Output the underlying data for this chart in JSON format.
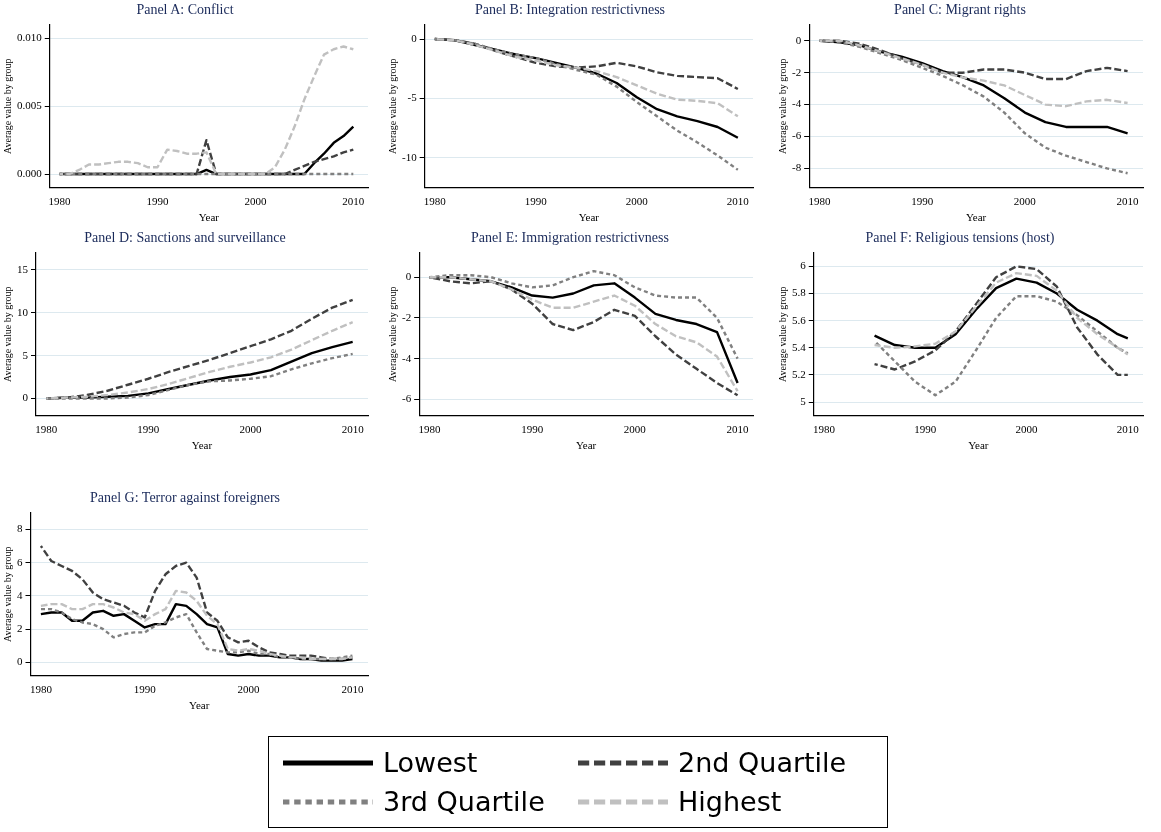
{
  "chart_data": [
    {
      "type": "line",
      "title": "Panel A: Conflict",
      "xlabel": "Year",
      "ylabel": "Average value by group",
      "grid": "y",
      "legend": "bottom",
      "xlim": [
        1979,
        2011.5
      ],
      "xticks": [
        1980,
        1990,
        2000,
        2010
      ],
      "ylim": [
        -0.001,
        0.011
      ],
      "yticks": [
        {
          "value": 0,
          "label": "0.000"
        },
        {
          "value": 0.005,
          "label": "0.005"
        },
        {
          "value": 0.01,
          "label": "0.010"
        }
      ],
      "x": [
        1980,
        1981,
        1982,
        1983,
        1984,
        1985,
        1986,
        1987,
        1988,
        1989,
        1990,
        1991,
        1992,
        1993,
        1994,
        1995,
        1996,
        1997,
        1998,
        1999,
        2000,
        2001,
        2002,
        2003,
        2004,
        2005,
        2006,
        2007,
        2008,
        2009,
        2010
      ],
      "series": [
        {
          "name": "Lowest",
          "color": "#000000",
          "line_style": "solid",
          "values": [
            0,
            0,
            0,
            0,
            0,
            0,
            0,
            0,
            0,
            0,
            0,
            0,
            0,
            0,
            0,
            0.0003,
            0,
            0,
            0,
            0,
            0,
            0,
            0,
            0,
            0,
            0,
            0.0008,
            0.0015,
            0.0023,
            0.0028,
            0.0035
          ]
        },
        {
          "name": "2nd Quartile",
          "color": "#404040",
          "line_style": "dashed",
          "values": [
            0,
            0,
            0,
            0,
            0,
            0,
            0,
            0,
            0,
            0,
            0,
            0,
            0,
            0,
            0,
            0.0025,
            0,
            0,
            0,
            0,
            0,
            0,
            0,
            0,
            0.0003,
            0.0006,
            0.0009,
            0.0011,
            0.0013,
            0.0016,
            0.0018
          ]
        },
        {
          "name": "3rd Quartile",
          "color": "#808080",
          "line_style": "dotted",
          "values": [
            0,
            0,
            0,
            0,
            0,
            0,
            0,
            0,
            0,
            0,
            0,
            0,
            0,
            0,
            0,
            0,
            0,
            0,
            0,
            0,
            0,
            0,
            0,
            0,
            0,
            0,
            0,
            0,
            0,
            0,
            0
          ]
        },
        {
          "name": "Highest",
          "color": "#c0c0c0",
          "line_style": "dashed",
          "values": [
            0,
            0,
            0.0003,
            0.0007,
            0.0007,
            0.0008,
            0.0009,
            0.0009,
            0.0008,
            0.0005,
            0.0005,
            0.0018,
            0.0017,
            0.0015,
            0.0015,
            0.0016,
            0,
            0,
            0,
            0,
            0,
            0,
            0.0005,
            0.0018,
            0.0035,
            0.0055,
            0.0072,
            0.0088,
            0.0092,
            0.0094,
            0.0092
          ]
        }
      ]
    },
    {
      "type": "line",
      "title": "Panel B: Integration restrictivness",
      "xlabel": "Year",
      "ylabel": "Average value by group",
      "grid": "y",
      "xlim": [
        1979,
        2011.5
      ],
      "xticks": [
        1980,
        1990,
        2000,
        2010
      ],
      "ylim": [
        -12.5,
        1.2
      ],
      "yticks": [
        0,
        -5,
        -10
      ],
      "x": [
        1980,
        1982,
        1984,
        1986,
        1988,
        1990,
        1992,
        1994,
        1996,
        1998,
        2000,
        2002,
        2004,
        2006,
        2008,
        2010
      ],
      "series": [
        {
          "color": "#000000",
          "line_style": "solid",
          "values": [
            0,
            -0.1,
            -0.5,
            -0.9,
            -1.3,
            -1.6,
            -2.0,
            -2.4,
            -2.9,
            -3.7,
            -4.9,
            -5.9,
            -6.5,
            -6.9,
            -7.4,
            -8.3
          ]
        },
        {
          "color": "#404040",
          "line_style": "dashed",
          "values": [
            0,
            -0.1,
            -0.4,
            -1.0,
            -1.5,
            -2.0,
            -2.3,
            -2.4,
            -2.3,
            -2.0,
            -2.3,
            -2.8,
            -3.1,
            -3.2,
            -3.3,
            -4.2
          ]
        },
        {
          "color": "#808080",
          "line_style": "dotted",
          "values": [
            0,
            -0.1,
            -0.4,
            -0.9,
            -1.3,
            -1.6,
            -2.1,
            -2.6,
            -3.0,
            -4.0,
            -5.3,
            -6.5,
            -7.7,
            -8.7,
            -9.8,
            -11.0
          ]
        },
        {
          "color": "#c0c0c0",
          "line_style": "dashed",
          "values": [
            0,
            -0.1,
            -0.5,
            -1.0,
            -1.5,
            -1.8,
            -2.2,
            -2.4,
            -2.7,
            -3.2,
            -3.9,
            -4.6,
            -5.1,
            -5.2,
            -5.4,
            -6.5
          ]
        }
      ]
    },
    {
      "type": "line",
      "title": "Panel C: Migrant rights",
      "xlabel": "Year",
      "ylabel": "Average value by group",
      "grid": "y",
      "xlim": [
        1979,
        2011.5
      ],
      "xticks": [
        1980,
        1990,
        2000,
        2010
      ],
      "ylim": [
        -9.2,
        1
      ],
      "yticks": [
        0,
        -2,
        -4,
        -6,
        -8
      ],
      "x": [
        1980,
        1982,
        1984,
        1986,
        1988,
        1990,
        1992,
        1994,
        1996,
        1998,
        2000,
        2002,
        2004,
        2006,
        2008,
        2010
      ],
      "series": [
        {
          "color": "#000000",
          "line_style": "solid",
          "values": [
            0,
            -0.1,
            -0.3,
            -0.7,
            -1.0,
            -1.4,
            -1.9,
            -2.3,
            -2.8,
            -3.6,
            -4.5,
            -5.1,
            -5.4,
            -5.4,
            -5.4,
            -5.8
          ]
        },
        {
          "color": "#404040",
          "line_style": "dashed",
          "values": [
            0,
            0,
            -0.2,
            -0.6,
            -1.1,
            -1.5,
            -2.0,
            -2.0,
            -1.8,
            -1.8,
            -2.0,
            -2.4,
            -2.4,
            -1.9,
            -1.7,
            -1.9
          ]
        },
        {
          "color": "#808080",
          "line_style": "dotted",
          "values": [
            0,
            -0.1,
            -0.4,
            -0.8,
            -1.2,
            -1.7,
            -2.2,
            -2.8,
            -3.5,
            -4.5,
            -5.8,
            -6.7,
            -7.2,
            -7.6,
            -8.0,
            -8.3
          ]
        },
        {
          "color": "#c0c0c0",
          "line_style": "dashed",
          "values": [
            0,
            0,
            -0.3,
            -0.7,
            -1.1,
            -1.5,
            -2.0,
            -2.3,
            -2.5,
            -2.8,
            -3.4,
            -4.0,
            -4.1,
            -3.8,
            -3.7,
            -3.9
          ]
        }
      ]
    },
    {
      "type": "line",
      "title": "Panel D: Sanctions and surveillance",
      "xlabel": "Year",
      "ylabel": "Average value by group",
      "grid": "y",
      "xlim": [
        1979,
        2011.5
      ],
      "xticks": [
        1980,
        1990,
        2000,
        2010
      ],
      "ylim": [
        -2,
        17
      ],
      "yticks": [
        0,
        5,
        10,
        15
      ],
      "x": [
        1980,
        1982,
        1984,
        1986,
        1988,
        1990,
        1992,
        1994,
        1996,
        1998,
        2000,
        2002,
        2004,
        2006,
        2008,
        2010
      ],
      "series": [
        {
          "color": "#000000",
          "line_style": "solid",
          "values": [
            0,
            0.1,
            0.1,
            0.2,
            0.3,
            0.6,
            1.1,
            1.6,
            2.1,
            2.5,
            2.8,
            3.3,
            4.3,
            5.3,
            6.0,
            6.6
          ]
        },
        {
          "color": "#404040",
          "line_style": "dashed",
          "values": [
            0,
            0.1,
            0.4,
            0.9,
            1.6,
            2.3,
            3.1,
            3.8,
            4.5,
            5.3,
            6.1,
            6.9,
            7.9,
            9.3,
            10.6,
            11.5
          ]
        },
        {
          "color": "#808080",
          "line_style": "dotted",
          "values": [
            0,
            0,
            0,
            0,
            0.1,
            0.4,
            1.0,
            1.6,
            2.0,
            2.1,
            2.3,
            2.6,
            3.4,
            4.1,
            4.7,
            5.2
          ]
        },
        {
          "color": "#c0c0c0",
          "line_style": "dashed",
          "values": [
            0,
            0.1,
            0.2,
            0.4,
            0.7,
            1.1,
            1.7,
            2.4,
            3.1,
            3.7,
            4.2,
            4.8,
            5.7,
            6.8,
            7.9,
            8.9
          ]
        }
      ]
    },
    {
      "type": "line",
      "title": "Panel E: Immigration restrictivness",
      "xlabel": "Year",
      "ylabel": "Average value by group",
      "grid": "y",
      "xlim": [
        1979,
        2011.5
      ],
      "xticks": [
        1980,
        1990,
        2000,
        2010
      ],
      "ylim": [
        -6.8,
        1.2
      ],
      "yticks": [
        0,
        -2,
        -4,
        -6
      ],
      "x": [
        1980,
        1982,
        1984,
        1986,
        1988,
        1990,
        1992,
        1994,
        1996,
        1998,
        2000,
        2002,
        2004,
        2006,
        2008,
        2010
      ],
      "series": [
        {
          "color": "#000000",
          "line_style": "solid",
          "values": [
            0,
            0,
            -0.1,
            -0.2,
            -0.5,
            -0.9,
            -1.0,
            -0.8,
            -0.4,
            -0.3,
            -1.0,
            -1.8,
            -2.1,
            -2.3,
            -2.7,
            -5.2
          ]
        },
        {
          "color": "#404040",
          "line_style": "dashed",
          "values": [
            0,
            -0.2,
            -0.3,
            -0.2,
            -0.6,
            -1.3,
            -2.3,
            -2.6,
            -2.2,
            -1.6,
            -1.9,
            -2.9,
            -3.8,
            -4.5,
            -5.2,
            -5.8
          ]
        },
        {
          "color": "#808080",
          "line_style": "dotted",
          "values": [
            0,
            0.1,
            0.1,
            0,
            -0.3,
            -0.5,
            -0.4,
            0,
            0.3,
            0.1,
            -0.5,
            -0.9,
            -1.0,
            -1.0,
            -2.0,
            -4.0
          ]
        },
        {
          "color": "#c0c0c0",
          "line_style": "dashed",
          "values": [
            0,
            0,
            -0.1,
            -0.2,
            -0.6,
            -1.1,
            -1.5,
            -1.5,
            -1.2,
            -0.9,
            -1.4,
            -2.3,
            -2.9,
            -3.2,
            -3.9,
            -5.6
          ]
        }
      ]
    },
    {
      "type": "line",
      "title": "Panel F: Religious tensions (host)",
      "xlabel": "Year",
      "ylabel": "Average value by group",
      "grid": "y",
      "xlim": [
        1979,
        2011.5
      ],
      "xticks": [
        1980,
        1990,
        2000,
        2010
      ],
      "ylim": [
        4.9,
        6.1
      ],
      "yticks": [
        5,
        5.2,
        5.4,
        5.6,
        5.8,
        6
      ],
      "x": [
        1985,
        1987,
        1989,
        1991,
        1993,
        1995,
        1997,
        1999,
        2001,
        2003,
        2005,
        2007,
        2009,
        2010
      ],
      "series": [
        {
          "color": "#000000",
          "line_style": "solid",
          "values": [
            5.49,
            5.42,
            5.4,
            5.4,
            5.5,
            5.68,
            5.84,
            5.91,
            5.88,
            5.8,
            5.68,
            5.6,
            5.5,
            5.47
          ]
        },
        {
          "color": "#404040",
          "line_style": "dashed",
          "values": [
            5.28,
            5.24,
            5.3,
            5.38,
            5.52,
            5.72,
            5.92,
            6.0,
            5.98,
            5.85,
            5.55,
            5.35,
            5.2,
            5.2
          ]
        },
        {
          "color": "#808080",
          "line_style": "dotted",
          "values": [
            5.45,
            5.3,
            5.15,
            5.05,
            5.15,
            5.38,
            5.62,
            5.78,
            5.78,
            5.74,
            5.64,
            5.52,
            5.4,
            5.36
          ]
        },
        {
          "color": "#c0c0c0",
          "line_style": "dashed",
          "values": [
            5.42,
            5.4,
            5.41,
            5.43,
            5.52,
            5.7,
            5.88,
            5.95,
            5.93,
            5.82,
            5.62,
            5.5,
            5.4,
            5.35
          ]
        }
      ]
    },
    {
      "type": "line",
      "title": "Panel G: Terror against foreigners",
      "xlabel": "Year",
      "ylabel": "Average value by group",
      "grid": "y",
      "xlim": [
        1979,
        2011.5
      ],
      "xticks": [
        1980,
        1990,
        2000,
        2010
      ],
      "ylim": [
        -0.8,
        9
      ],
      "yticks": [
        0,
        2,
        4,
        6,
        8
      ],
      "x": [
        1980,
        1981,
        1982,
        1983,
        1984,
        1985,
        1986,
        1987,
        1988,
        1989,
        1990,
        1991,
        1992,
        1993,
        1994,
        1995,
        1996,
        1997,
        1998,
        1999,
        2000,
        2001,
        2002,
        2003,
        2004,
        2005,
        2006,
        2007,
        2008,
        2009,
        2010
      ],
      "series": [
        {
          "color": "#000000",
          "line_style": "solid",
          "values": [
            2.9,
            3.0,
            3.0,
            2.5,
            2.5,
            3.0,
            3.1,
            2.8,
            2.9,
            2.5,
            2.1,
            2.3,
            2.3,
            3.5,
            3.4,
            2.9,
            2.3,
            2.1,
            0.5,
            0.4,
            0.5,
            0.4,
            0.4,
            0.3,
            0.3,
            0.2,
            0.2,
            0.1,
            0.1,
            0.1,
            0.2
          ]
        },
        {
          "color": "#404040",
          "line_style": "dashed",
          "values": [
            7.0,
            6.1,
            5.8,
            5.5,
            5.0,
            4.2,
            3.8,
            3.6,
            3.4,
            3.0,
            2.7,
            4.3,
            5.3,
            5.8,
            6.0,
            5.1,
            3.0,
            2.5,
            1.5,
            1.2,
            1.3,
            0.9,
            0.6,
            0.5,
            0.4,
            0.4,
            0.4,
            0.3,
            0.2,
            0.2,
            0.3
          ]
        },
        {
          "color": "#808080",
          "line_style": "dotted",
          "values": [
            3.2,
            3.2,
            3.0,
            2.6,
            2.4,
            2.3,
            2.0,
            1.5,
            1.7,
            1.8,
            1.8,
            2.2,
            2.4,
            2.7,
            2.9,
            1.8,
            0.8,
            0.7,
            0.6,
            0.6,
            0.7,
            0.5,
            0.5,
            0.3,
            0.3,
            0.2,
            0.2,
            0.2,
            0.2,
            0.3,
            0.4
          ]
        },
        {
          "color": "#c0c0c0",
          "line_style": "dashed",
          "values": [
            3.4,
            3.5,
            3.5,
            3.2,
            3.2,
            3.5,
            3.5,
            3.3,
            3.0,
            2.9,
            2.5,
            2.9,
            3.2,
            4.3,
            4.2,
            3.7,
            2.8,
            2.3,
            0.8,
            0.7,
            0.8,
            0.7,
            0.5,
            0.4,
            0.3,
            0.3,
            0.2,
            0.2,
            0.2,
            0.2,
            0.3
          ]
        }
      ]
    }
  ]
}
